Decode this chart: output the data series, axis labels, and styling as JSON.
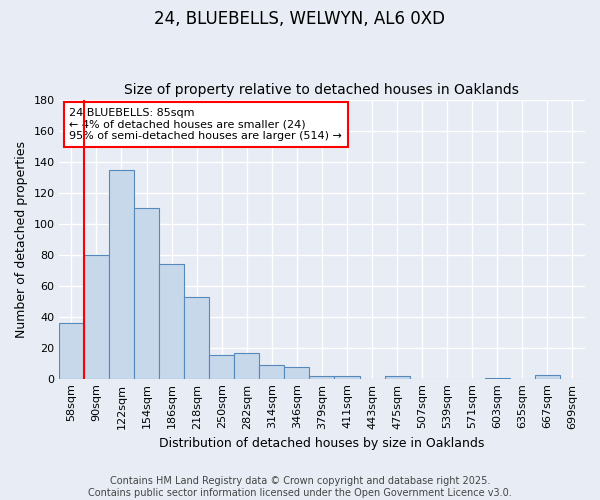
{
  "title": "24, BLUEBELLS, WELWYN, AL6 0XD",
  "subtitle": "Size of property relative to detached houses in Oaklands",
  "xlabel": "Distribution of detached houses by size in Oaklands",
  "ylabel": "Number of detached properties",
  "bar_color": "#c8d8eb",
  "bar_edge_color": "#5588bb",
  "background_color": "#e8edf5",
  "grid_color": "#ffffff",
  "categories": [
    "58sqm",
    "90sqm",
    "122sqm",
    "154sqm",
    "186sqm",
    "218sqm",
    "250sqm",
    "282sqm",
    "314sqm",
    "346sqm",
    "379sqm",
    "411sqm",
    "443sqm",
    "475sqm",
    "507sqm",
    "539sqm",
    "571sqm",
    "603sqm",
    "635sqm",
    "667sqm",
    "699sqm"
  ],
  "values": [
    36,
    80,
    135,
    110,
    74,
    53,
    16,
    17,
    9,
    8,
    2,
    2,
    0,
    2,
    0,
    0,
    0,
    1,
    0,
    3,
    0
  ],
  "ylim": [
    0,
    180
  ],
  "yticks": [
    0,
    20,
    40,
    60,
    80,
    100,
    120,
    140,
    160,
    180
  ],
  "annotation_text": "24 BLUEBELLS: 85sqm\n← 4% of detached houses are smaller (24)\n95% of semi-detached houses are larger (514) →",
  "footer_text": "Contains HM Land Registry data © Crown copyright and database right 2025.\nContains public sector information licensed under the Open Government Licence v3.0.",
  "title_fontsize": 12,
  "subtitle_fontsize": 10,
  "axis_label_fontsize": 9,
  "tick_fontsize": 8,
  "annotation_fontsize": 8,
  "footer_fontsize": 7
}
